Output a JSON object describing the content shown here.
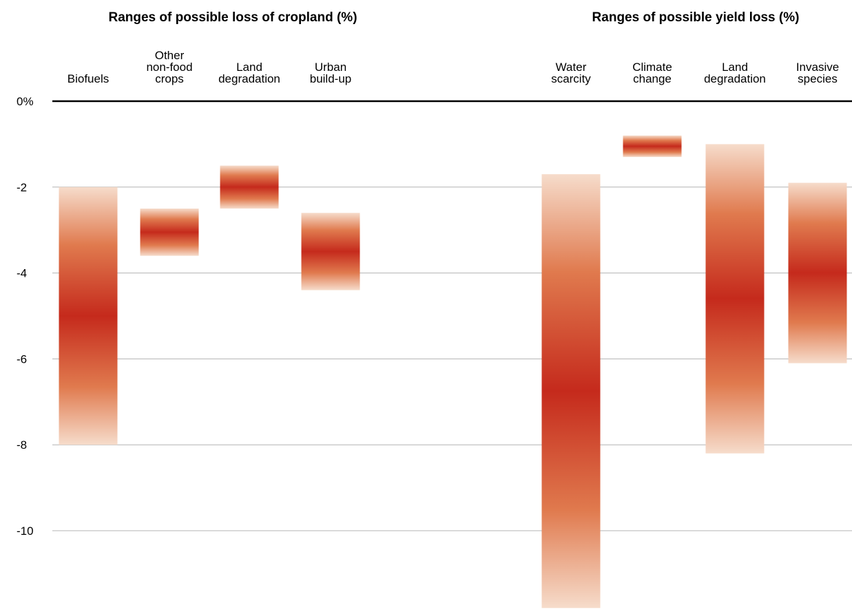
{
  "chart_data": {
    "type": "bar",
    "subtype": "floating range bars with gradient",
    "yunit_label": "0%",
    "ylim": [
      -12,
      0
    ],
    "yticks": [
      {
        "value": 0,
        "label": "0%"
      },
      {
        "value": -2,
        "label": "-2"
      },
      {
        "value": -4,
        "label": "-4"
      },
      {
        "value": -6,
        "label": "-6"
      },
      {
        "value": -8,
        "label": "-8"
      },
      {
        "value": -10,
        "label": "-10"
      }
    ],
    "grid": true,
    "groups": [
      {
        "title": "Ranges of possible loss of cropland (%)",
        "categories": [
          {
            "label": [
              "Biofuels"
            ],
            "low": -8.0,
            "high": -2.0,
            "peak": -5.0
          },
          {
            "label": [
              "Other",
              "non-food",
              "crops"
            ],
            "low": -3.6,
            "high": -2.5,
            "peak": -3.05
          },
          {
            "label": [
              "Land",
              "degradation"
            ],
            "low": -2.5,
            "high": -1.5,
            "peak": -2.0
          },
          {
            "label": [
              "Urban",
              "build-up"
            ],
            "low": -4.4,
            "high": -2.6,
            "peak": -3.5
          }
        ]
      },
      {
        "title": "Ranges of possible yield loss (%)",
        "categories": [
          {
            "label": [
              "Water",
              "scarcity"
            ],
            "low": -11.8,
            "high": -1.7,
            "peak": -6.75
          },
          {
            "label": [
              "Climate",
              "change"
            ],
            "low": -1.3,
            "high": -0.8,
            "peak": -1.05
          },
          {
            "label": [
              "Land",
              "degradation"
            ],
            "low": -8.2,
            "high": -1.0,
            "peak": -4.6
          },
          {
            "label": [
              "Invasive",
              "species"
            ],
            "low": -6.1,
            "high": -1.9,
            "peak": -4.0
          }
        ]
      }
    ],
    "colors": {
      "peak": "#c52a1c",
      "mid": "#e07a4e",
      "edge": "#f6dccb",
      "grid": "#b3b3b3",
      "axis": "#000000"
    }
  }
}
